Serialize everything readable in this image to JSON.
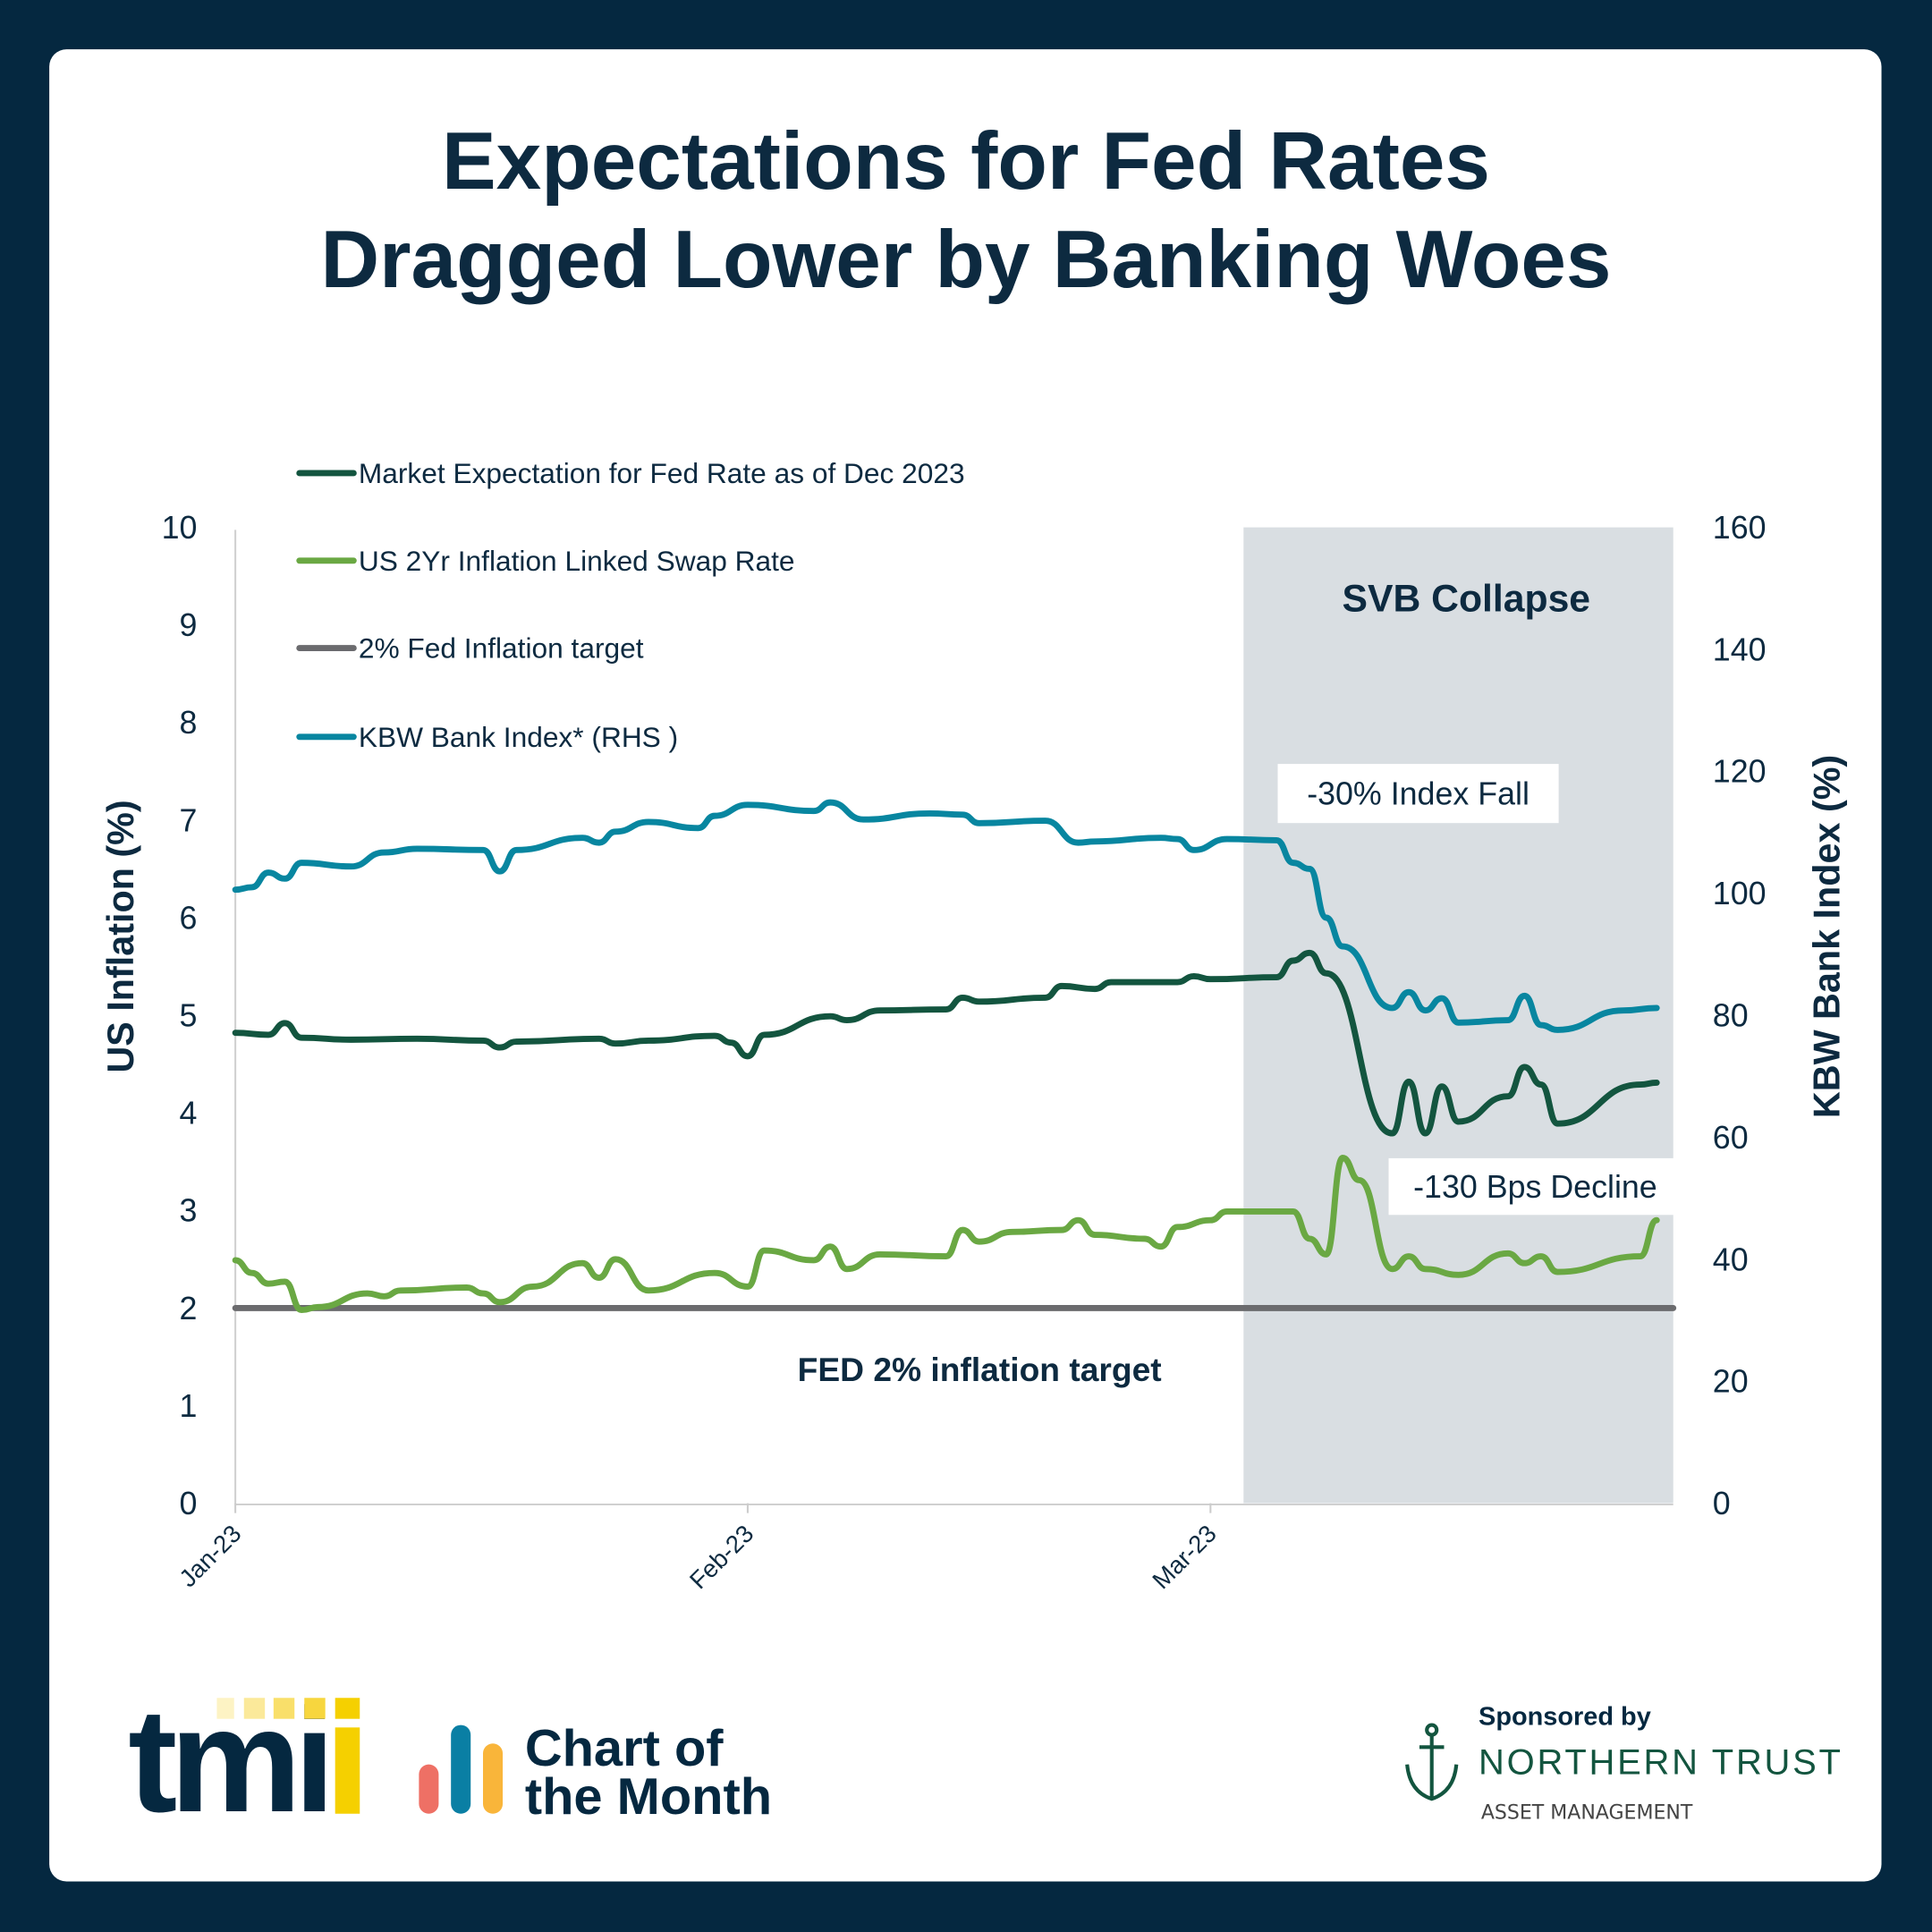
{
  "title": {
    "line1": "Expectations for Fed Rates",
    "line2": "Dragged Lower by Banking Woes"
  },
  "colors": {
    "background": "#052840",
    "title": "#0d2a40",
    "fed_expectation": "#13553f",
    "swap_rate": "#6aa843",
    "fed_target": "#6b6b6e",
    "kbw": "#0886a0",
    "shade": "#d9dee2"
  },
  "chart_data": {
    "type": "line",
    "xlabel": "",
    "ylabel": "US Inflation (%)",
    "y2label": "KBW Bank Index (%)",
    "xlim": [
      "2023-01-01",
      "2023-03-29"
    ],
    "ylim": [
      0,
      10
    ],
    "y2lim": [
      0,
      160
    ],
    "x_ticks": [
      {
        "date": "2023-01-01",
        "label": "Jan-23"
      },
      {
        "date": "2023-02-01",
        "label": "Feb-23"
      },
      {
        "date": "2023-03-01",
        "label": "Mar-23"
      }
    ],
    "y_ticks": [
      "0",
      "1",
      "2",
      "3",
      "4",
      "5",
      "6",
      "7",
      "8",
      "9",
      "10"
    ],
    "y2_ticks": [
      "0",
      "20",
      "40",
      "60",
      "80",
      "100",
      "120",
      "140",
      "160"
    ],
    "grid": false,
    "legend_position": "top-left",
    "shaded_region": {
      "from": "2023-03-03",
      "to": "2023-03-29",
      "label": "SVB Collapse"
    },
    "annotations": {
      "kbw_fall": "-30% Index Fall",
      "swap_decline": "-130 Bps Decline",
      "target": "FED 2% inflation target"
    },
    "series": [
      {
        "name": "Market Expectation for Fed Rate as of Dec 2023",
        "axis": "left",
        "color": "#13553f",
        "points": [
          [
            "2023-01-01",
            4.82
          ],
          [
            "2023-01-03",
            4.8
          ],
          [
            "2023-01-04",
            4.92
          ],
          [
            "2023-01-05",
            4.77
          ],
          [
            "2023-01-08",
            4.75
          ],
          [
            "2023-01-12",
            4.76
          ],
          [
            "2023-01-16",
            4.74
          ],
          [
            "2023-01-17",
            4.67
          ],
          [
            "2023-01-18",
            4.73
          ],
          [
            "2023-01-23",
            4.76
          ],
          [
            "2023-01-24",
            4.71
          ],
          [
            "2023-01-26",
            4.74
          ],
          [
            "2023-01-30",
            4.79
          ],
          [
            "2023-01-31",
            4.72
          ],
          [
            "2023-02-01",
            4.58
          ],
          [
            "2023-02-02",
            4.8
          ],
          [
            "2023-02-06",
            4.99
          ],
          [
            "2023-02-07",
            4.95
          ],
          [
            "2023-02-09",
            5.05
          ],
          [
            "2023-02-13",
            5.06
          ],
          [
            "2023-02-14",
            5.18
          ],
          [
            "2023-02-15",
            5.14
          ],
          [
            "2023-02-19",
            5.18
          ],
          [
            "2023-02-20",
            5.3
          ],
          [
            "2023-02-22",
            5.27
          ],
          [
            "2023-02-23",
            5.34
          ],
          [
            "2023-02-27",
            5.34
          ],
          [
            "2023-02-28",
            5.4
          ],
          [
            "2023-03-01",
            5.37
          ],
          [
            "2023-03-05",
            5.39
          ],
          [
            "2023-03-06",
            5.56
          ],
          [
            "2023-03-07",
            5.64
          ],
          [
            "2023-03-08",
            5.43
          ],
          [
            "2023-03-12",
            3.79
          ],
          [
            "2023-03-13",
            4.32
          ],
          [
            "2023-03-14",
            3.79
          ],
          [
            "2023-03-15",
            4.27
          ],
          [
            "2023-03-16",
            3.91
          ],
          [
            "2023-03-19",
            4.17
          ],
          [
            "2023-03-20",
            4.47
          ],
          [
            "2023-03-21",
            4.29
          ],
          [
            "2023-03-22",
            3.89
          ],
          [
            "2023-03-27",
            4.29
          ],
          [
            "2023-03-28",
            4.31
          ]
        ]
      },
      {
        "name": "US 2Yr Inflation Linked Swap Rate",
        "axis": "left",
        "color": "#6aa843",
        "points": [
          [
            "2023-01-01",
            2.49
          ],
          [
            "2023-01-02",
            2.36
          ],
          [
            "2023-01-03",
            2.25
          ],
          [
            "2023-01-04",
            2.27
          ],
          [
            "2023-01-05",
            1.98
          ],
          [
            "2023-01-06",
            2.01
          ],
          [
            "2023-01-09",
            2.15
          ],
          [
            "2023-01-10",
            2.12
          ],
          [
            "2023-01-11",
            2.18
          ],
          [
            "2023-01-15",
            2.21
          ],
          [
            "2023-01-16",
            2.15
          ],
          [
            "2023-01-17",
            2.06
          ],
          [
            "2023-01-19",
            2.22
          ],
          [
            "2023-01-22",
            2.46
          ],
          [
            "2023-01-23",
            2.31
          ],
          [
            "2023-01-24",
            2.5
          ],
          [
            "2023-01-26",
            2.18
          ],
          [
            "2023-01-30",
            2.36
          ],
          [
            "2023-02-01",
            2.22
          ],
          [
            "2023-02-02",
            2.59
          ],
          [
            "2023-02-05",
            2.49
          ],
          [
            "2023-02-06",
            2.63
          ],
          [
            "2023-02-07",
            2.4
          ],
          [
            "2023-02-09",
            2.55
          ],
          [
            "2023-02-13",
            2.53
          ],
          [
            "2023-02-14",
            2.8
          ],
          [
            "2023-02-15",
            2.68
          ],
          [
            "2023-02-17",
            2.78
          ],
          [
            "2023-02-20",
            2.8
          ],
          [
            "2023-02-21",
            2.9
          ],
          [
            "2023-02-22",
            2.75
          ],
          [
            "2023-02-25",
            2.71
          ],
          [
            "2023-02-26",
            2.63
          ],
          [
            "2023-02-27",
            2.83
          ],
          [
            "2023-03-01",
            2.9
          ],
          [
            "2023-03-02",
            2.99
          ],
          [
            "2023-03-06",
            2.99
          ],
          [
            "2023-03-07",
            2.71
          ],
          [
            "2023-03-08",
            2.55
          ],
          [
            "2023-03-09",
            3.54
          ],
          [
            "2023-03-10",
            3.31
          ],
          [
            "2023-03-12",
            2.4
          ],
          [
            "2023-03-13",
            2.53
          ],
          [
            "2023-03-14",
            2.4
          ],
          [
            "2023-03-16",
            2.34
          ],
          [
            "2023-03-19",
            2.56
          ],
          [
            "2023-03-20",
            2.46
          ],
          [
            "2023-03-21",
            2.53
          ],
          [
            "2023-03-22",
            2.37
          ],
          [
            "2023-03-27",
            2.53
          ],
          [
            "2023-03-28",
            2.9
          ]
        ]
      },
      {
        "name": "2% Fed Inflation target",
        "axis": "left",
        "color": "#6b6b6e",
        "points": [
          [
            "2023-01-01",
            2
          ],
          [
            "2023-03-29",
            2
          ]
        ]
      },
      {
        "name": "KBW Bank Index* (RHS )",
        "axis": "right",
        "color": "#0886a0",
        "points": [
          [
            "2023-01-01",
            100.6
          ],
          [
            "2023-01-02",
            101.0
          ],
          [
            "2023-01-03",
            103.4
          ],
          [
            "2023-01-04",
            102.4
          ],
          [
            "2023-01-05",
            105.0
          ],
          [
            "2023-01-08",
            104.4
          ],
          [
            "2023-01-10",
            106.7
          ],
          [
            "2023-01-12",
            107.3
          ],
          [
            "2023-01-16",
            107.1
          ],
          [
            "2023-01-17",
            103.6
          ],
          [
            "2023-01-18",
            107.1
          ],
          [
            "2023-01-22",
            109.1
          ],
          [
            "2023-01-23",
            108.3
          ],
          [
            "2023-01-24",
            110.1
          ],
          [
            "2023-01-26",
            111.7
          ],
          [
            "2023-01-29",
            110.7
          ],
          [
            "2023-01-30",
            112.7
          ],
          [
            "2023-02-01",
            114.5
          ],
          [
            "2023-02-05",
            113.5
          ],
          [
            "2023-02-06",
            114.9
          ],
          [
            "2023-02-08",
            112.1
          ],
          [
            "2023-02-12",
            113.1
          ],
          [
            "2023-02-14",
            112.9
          ],
          [
            "2023-02-15",
            111.5
          ],
          [
            "2023-02-19",
            111.9
          ],
          [
            "2023-02-21",
            108.3
          ],
          [
            "2023-02-22",
            108.5
          ],
          [
            "2023-02-26",
            109.1
          ],
          [
            "2023-02-27",
            108.9
          ],
          [
            "2023-02-28",
            107.1
          ],
          [
            "2023-03-02",
            108.9
          ],
          [
            "2023-03-05",
            108.7
          ],
          [
            "2023-03-06",
            105.0
          ],
          [
            "2023-03-07",
            104.0
          ],
          [
            "2023-03-08",
            96.0
          ],
          [
            "2023-03-09",
            91.3
          ],
          [
            "2023-03-12",
            81.2
          ],
          [
            "2023-03-13",
            83.8
          ],
          [
            "2023-03-14",
            80.8
          ],
          [
            "2023-03-15",
            82.8
          ],
          [
            "2023-03-16",
            78.8
          ],
          [
            "2023-03-19",
            79.2
          ],
          [
            "2023-03-20",
            83.2
          ],
          [
            "2023-03-21",
            78.4
          ],
          [
            "2023-03-22",
            77.6
          ],
          [
            "2023-03-26",
            80.8
          ],
          [
            "2023-03-28",
            81.2
          ]
        ]
      }
    ]
  },
  "footer": {
    "tmi_logo": "tmi",
    "chart_of_month": {
      "line1": "Chart of",
      "line2": "the Month"
    },
    "sponsored_by": "Sponsored by",
    "sponsor_name": "NORTHERN TRUST",
    "sponsor_sub": "ASSET MANAGEMENT"
  }
}
